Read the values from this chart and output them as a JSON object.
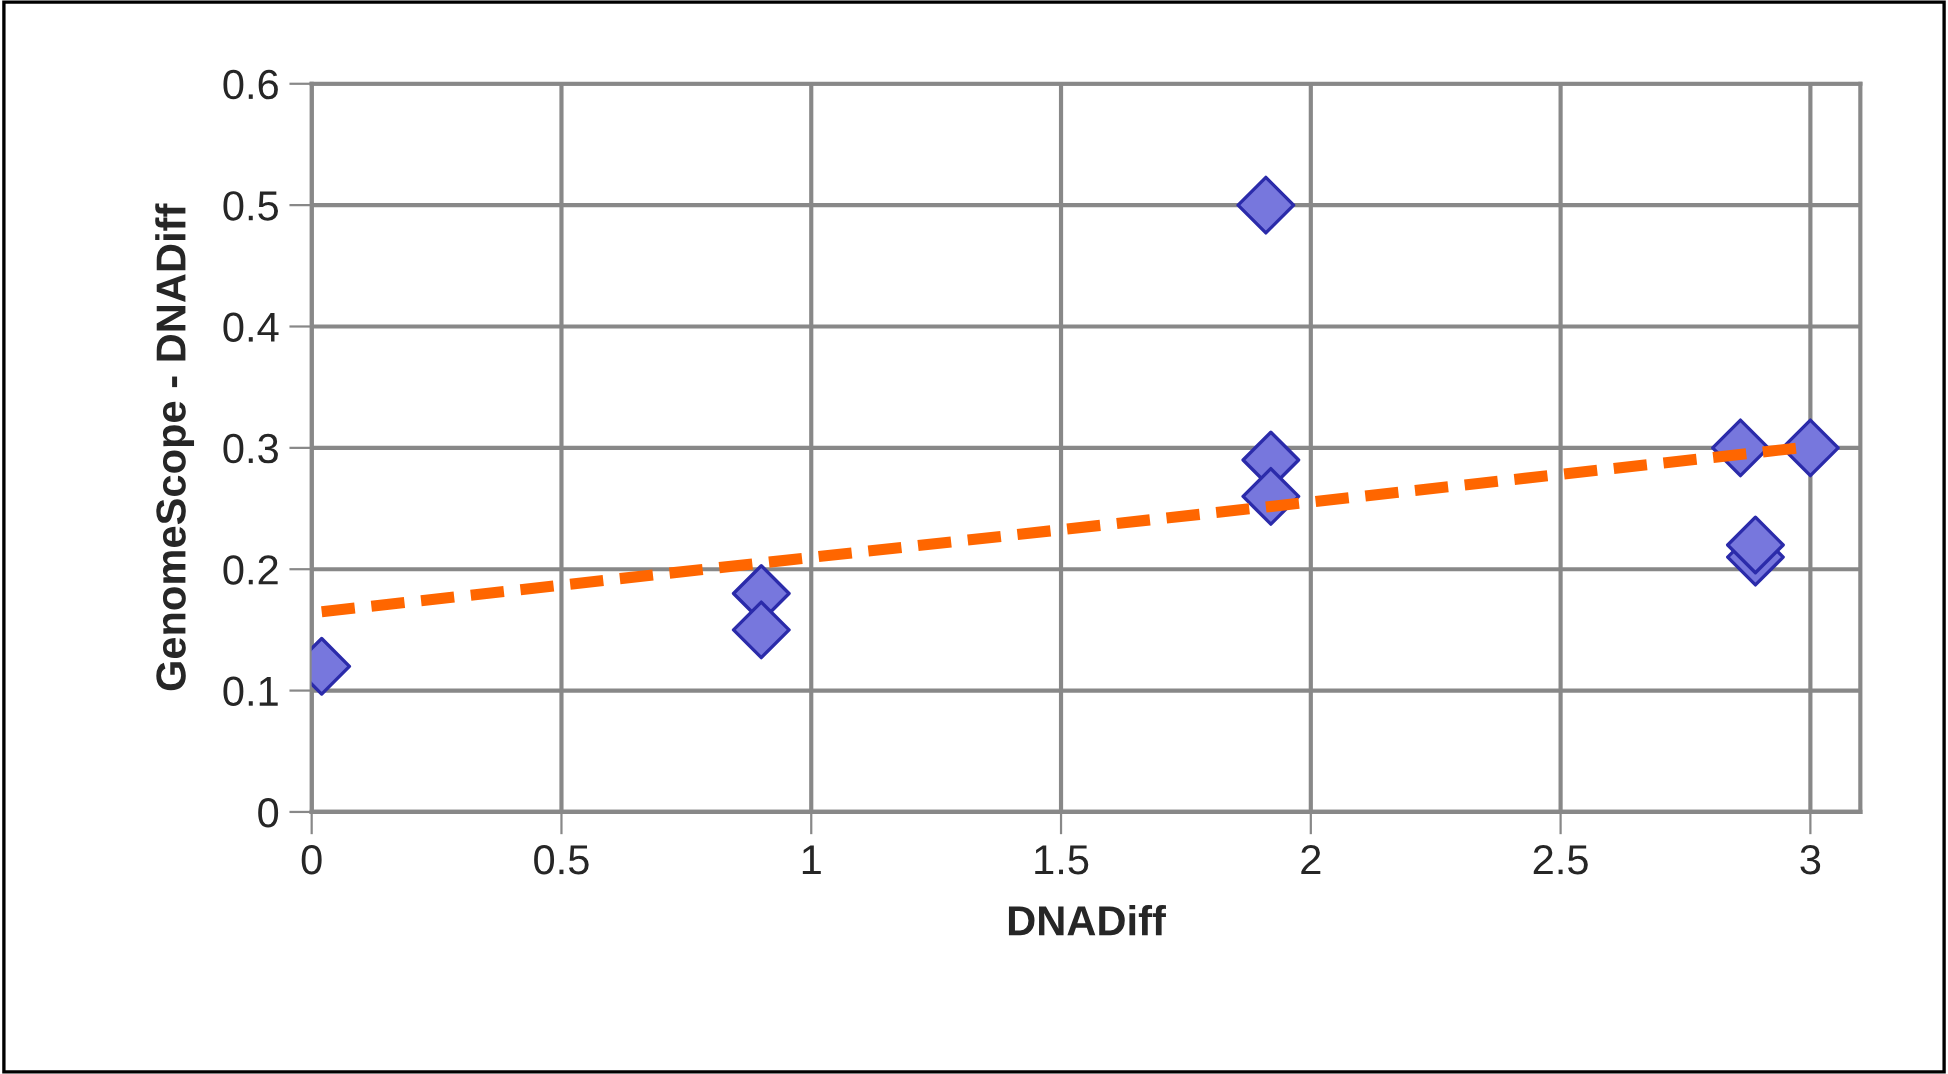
{
  "chart_data": {
    "type": "scatter",
    "xlabel": "DNADiff",
    "ylabel": "GenomeScope - DNADiff",
    "series": [
      {
        "color": "#7777dd",
        "marker": "diamond",
        "x": [
          0.02,
          0.9,
          0.9,
          1.91,
          1.92,
          1.92,
          2.86,
          2.89,
          2.89,
          3.0
        ],
        "values": [
          0.12,
          0.18,
          0.15,
          0.5,
          0.29,
          0.26,
          0.3,
          0.21,
          0.22,
          0.3
        ]
      },
      {
        "type": "line",
        "color": "#ff6600",
        "line_style": "dashed",
        "marker": "none",
        "x": [
          0.02,
          3.0
        ],
        "values": [
          0.165,
          0.301
        ]
      }
    ],
    "xlim": [
      0,
      3.1
    ],
    "xticks": [
      0,
      0.5,
      1,
      1.5,
      2,
      2.5,
      3
    ],
    "ylim": [
      0,
      0.6
    ],
    "yticks": [
      0,
      0.1,
      0.2,
      0.3,
      0.4,
      0.5,
      0.6
    ],
    "grid": true,
    "legend": false
  }
}
